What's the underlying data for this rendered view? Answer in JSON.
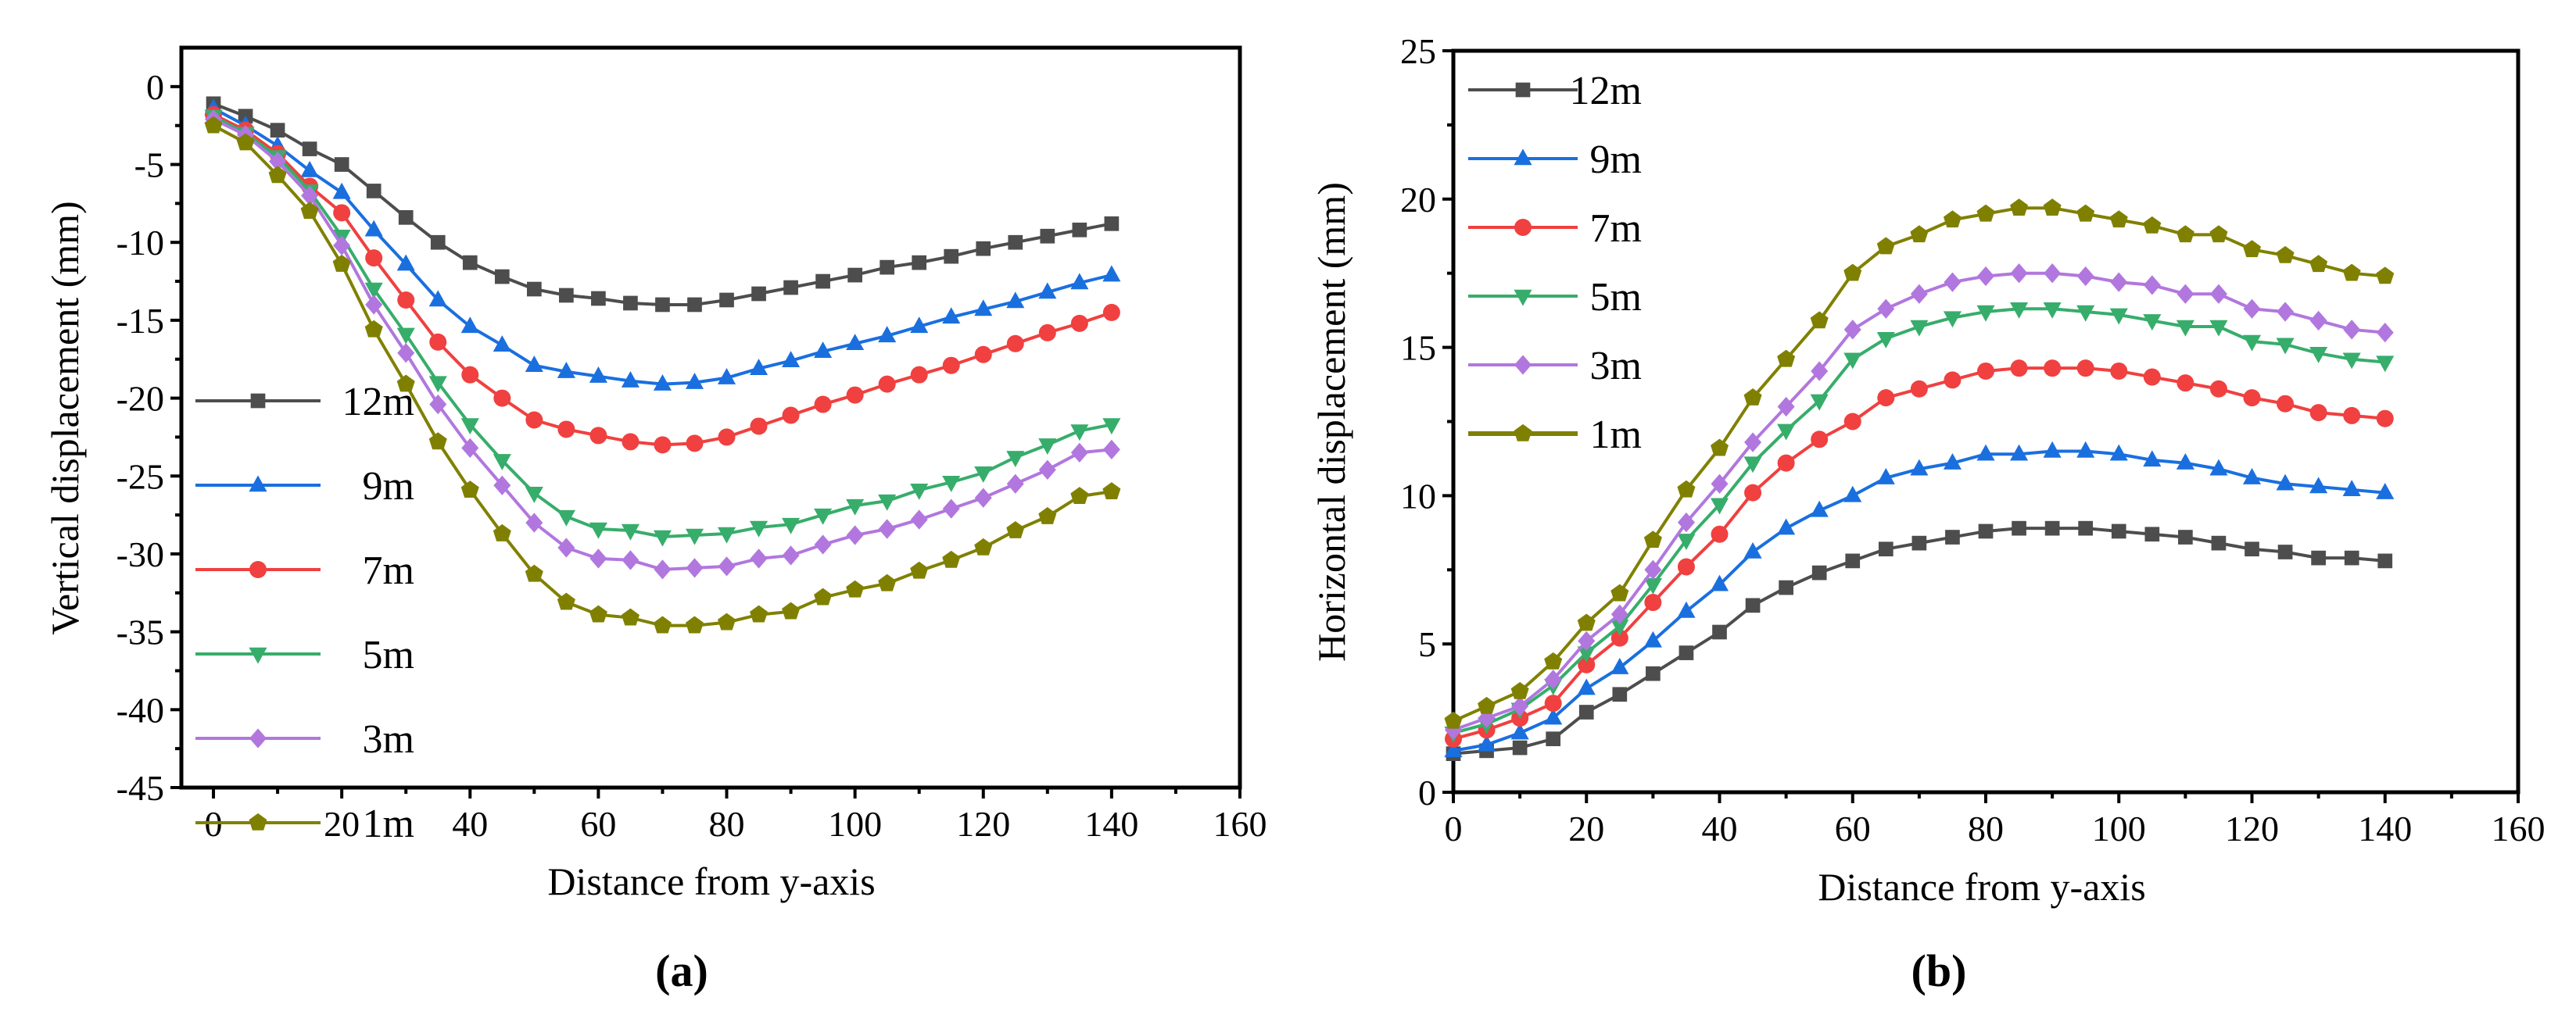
{
  "chart_data": [
    {
      "type": "line",
      "panel_label": "(a)",
      "title": "",
      "xlabel": "Distance from y-axis",
      "ylabel": "Vertical displacement (mm)",
      "xlim": [
        -5,
        160
      ],
      "ylim": [
        -45,
        2.5
      ],
      "xticks": [
        0,
        20,
        40,
        60,
        80,
        100,
        120,
        140,
        160
      ],
      "yticks": [
        0,
        -5,
        -10,
        -15,
        -20,
        -25,
        -30,
        -35,
        -40,
        -45
      ],
      "grid": false,
      "legend_position": "lower-left",
      "x": [
        0,
        5,
        10,
        15,
        20,
        25,
        30,
        35,
        40,
        45,
        50,
        55,
        60,
        65,
        70,
        75,
        80,
        85,
        90,
        95,
        100,
        105,
        110,
        115,
        120,
        125,
        130,
        135,
        140
      ],
      "series": [
        {
          "name": "12m",
          "color": "#4d4d4d",
          "marker": "square",
          "values": [
            -1.1,
            -1.9,
            -2.8,
            -4.0,
            -5.0,
            -6.7,
            -8.4,
            -10.0,
            -11.3,
            -12.2,
            -13.0,
            -13.4,
            -13.6,
            -13.9,
            -14.0,
            -14.0,
            -13.7,
            -13.3,
            -12.9,
            -12.5,
            -12.1,
            -11.6,
            -11.3,
            -10.9,
            -10.4,
            -10.0,
            -9.6,
            -9.2,
            -8.8
          ]
        },
        {
          "name": "9m",
          "color": "#1a6fdf",
          "marker": "triangle-up",
          "values": [
            -1.4,
            -2.5,
            -3.8,
            -5.4,
            -6.8,
            -9.2,
            -11.4,
            -13.7,
            -15.4,
            -16.6,
            -17.9,
            -18.3,
            -18.6,
            -18.9,
            -19.1,
            -19.0,
            -18.7,
            -18.1,
            -17.6,
            -17.0,
            -16.5,
            -16.0,
            -15.4,
            -14.8,
            -14.3,
            -13.8,
            -13.2,
            -12.6,
            -12.1
          ]
        },
        {
          "name": "7m",
          "color": "#f04040",
          "marker": "circle",
          "values": [
            -1.8,
            -2.8,
            -4.3,
            -6.4,
            -8.1,
            -11.0,
            -13.7,
            -16.4,
            -18.5,
            -20.0,
            -21.4,
            -22.0,
            -22.4,
            -22.8,
            -23.0,
            -22.9,
            -22.5,
            -21.8,
            -21.1,
            -20.4,
            -19.8,
            -19.1,
            -18.5,
            -17.9,
            -17.2,
            -16.5,
            -15.8,
            -15.2,
            -14.5
          ]
        },
        {
          "name": "5m",
          "color": "#37ad6b",
          "marker": "triangle-down",
          "values": [
            -1.9,
            -3.0,
            -4.5,
            -6.7,
            -9.6,
            -13.0,
            -15.9,
            -19.0,
            -21.7,
            -24.0,
            -26.1,
            -27.6,
            -28.4,
            -28.5,
            -28.9,
            -28.8,
            -28.7,
            -28.3,
            -28.1,
            -27.5,
            -26.9,
            -26.6,
            -25.9,
            -25.4,
            -24.8,
            -23.8,
            -23.0,
            -22.1,
            -21.7
          ]
        },
        {
          "name": "3m",
          "color": "#b177de",
          "marker": "diamond",
          "values": [
            -2.1,
            -3.1,
            -4.8,
            -7.0,
            -10.2,
            -14.0,
            -17.1,
            -20.4,
            -23.2,
            -25.6,
            -28.0,
            -29.6,
            -30.3,
            -30.4,
            -31.0,
            -30.9,
            -30.8,
            -30.3,
            -30.1,
            -29.4,
            -28.8,
            -28.4,
            -27.8,
            -27.1,
            -26.4,
            -25.5,
            -24.6,
            -23.5,
            -23.3
          ]
        },
        {
          "name": "1m",
          "color": "#808000",
          "marker": "pentagon",
          "values": [
            -2.5,
            -3.6,
            -5.7,
            -8.0,
            -11.4,
            -15.6,
            -19.1,
            -22.8,
            -25.9,
            -28.7,
            -31.3,
            -33.1,
            -33.9,
            -34.1,
            -34.6,
            -34.6,
            -34.4,
            -33.9,
            -33.7,
            -32.8,
            -32.3,
            -31.9,
            -31.1,
            -30.4,
            -29.6,
            -28.5,
            -27.6,
            -26.3,
            -26.0
          ]
        }
      ]
    },
    {
      "type": "line",
      "panel_label": "(b)",
      "title": "",
      "xlabel": "Distance from y-axis",
      "ylabel": "Horizontal displacement (mm)",
      "xlim": [
        0,
        160
      ],
      "ylim": [
        0,
        25
      ],
      "xticks": [
        0,
        20,
        40,
        60,
        80,
        100,
        120,
        140,
        160
      ],
      "yticks": [
        0,
        5,
        10,
        15,
        20,
        25
      ],
      "grid": false,
      "legend_position": "top-left",
      "x": [
        0,
        5,
        10,
        15,
        20,
        25,
        30,
        35,
        40,
        45,
        50,
        55,
        60,
        65,
        70,
        75,
        80,
        85,
        90,
        95,
        100,
        105,
        110,
        115,
        120,
        125,
        130,
        135,
        140
      ],
      "series": [
        {
          "name": "12m",
          "color": "#4d4d4d",
          "marker": "square",
          "values": [
            1.3,
            1.4,
            1.5,
            1.8,
            2.7,
            3.3,
            4.0,
            4.7,
            5.4,
            6.3,
            6.9,
            7.4,
            7.8,
            8.2,
            8.4,
            8.6,
            8.8,
            8.9,
            8.9,
            8.9,
            8.8,
            8.7,
            8.6,
            8.4,
            8.2,
            8.1,
            7.9,
            7.9,
            7.8
          ]
        },
        {
          "name": "9m",
          "color": "#1a6fdf",
          "marker": "triangle-up",
          "values": [
            1.4,
            1.6,
            2.0,
            2.5,
            3.5,
            4.2,
            5.1,
            6.1,
            7.0,
            8.1,
            8.9,
            9.5,
            10.0,
            10.6,
            10.9,
            11.1,
            11.4,
            11.4,
            11.5,
            11.5,
            11.4,
            11.2,
            11.1,
            10.9,
            10.6,
            10.4,
            10.3,
            10.2,
            10.1
          ]
        },
        {
          "name": "7m",
          "color": "#f04040",
          "marker": "circle",
          "values": [
            1.8,
            2.1,
            2.5,
            3.0,
            4.3,
            5.2,
            6.4,
            7.6,
            8.7,
            10.1,
            11.1,
            11.9,
            12.5,
            13.3,
            13.6,
            13.9,
            14.2,
            14.3,
            14.3,
            14.3,
            14.2,
            14.0,
            13.8,
            13.6,
            13.3,
            13.1,
            12.8,
            12.7,
            12.6
          ]
        },
        {
          "name": "5m",
          "color": "#37ad6b",
          "marker": "triangle-down",
          "values": [
            2.0,
            2.3,
            2.8,
            3.6,
            4.7,
            5.6,
            7.0,
            8.5,
            9.7,
            11.1,
            12.2,
            13.2,
            14.6,
            15.3,
            15.7,
            16.0,
            16.2,
            16.3,
            16.3,
            16.2,
            16.1,
            15.9,
            15.7,
            15.7,
            15.2,
            15.1,
            14.8,
            14.6,
            14.5
          ]
        },
        {
          "name": "3m",
          "color": "#b177de",
          "marker": "diamond",
          "values": [
            2.1,
            2.5,
            2.9,
            3.8,
            5.1,
            6.0,
            7.5,
            9.1,
            10.4,
            11.8,
            13.0,
            14.2,
            15.6,
            16.3,
            16.8,
            17.2,
            17.4,
            17.5,
            17.5,
            17.4,
            17.2,
            17.1,
            16.8,
            16.8,
            16.3,
            16.2,
            15.9,
            15.6,
            15.5
          ]
        },
        {
          "name": "1m",
          "color": "#808000",
          "marker": "pentagon",
          "values": [
            2.4,
            2.9,
            3.4,
            4.4,
            5.7,
            6.7,
            8.5,
            10.2,
            11.6,
            13.3,
            14.6,
            15.9,
            17.5,
            18.4,
            18.8,
            19.3,
            19.5,
            19.7,
            19.7,
            19.5,
            19.3,
            19.1,
            18.8,
            18.8,
            18.3,
            18.1,
            17.8,
            17.5,
            17.4
          ]
        }
      ]
    }
  ]
}
